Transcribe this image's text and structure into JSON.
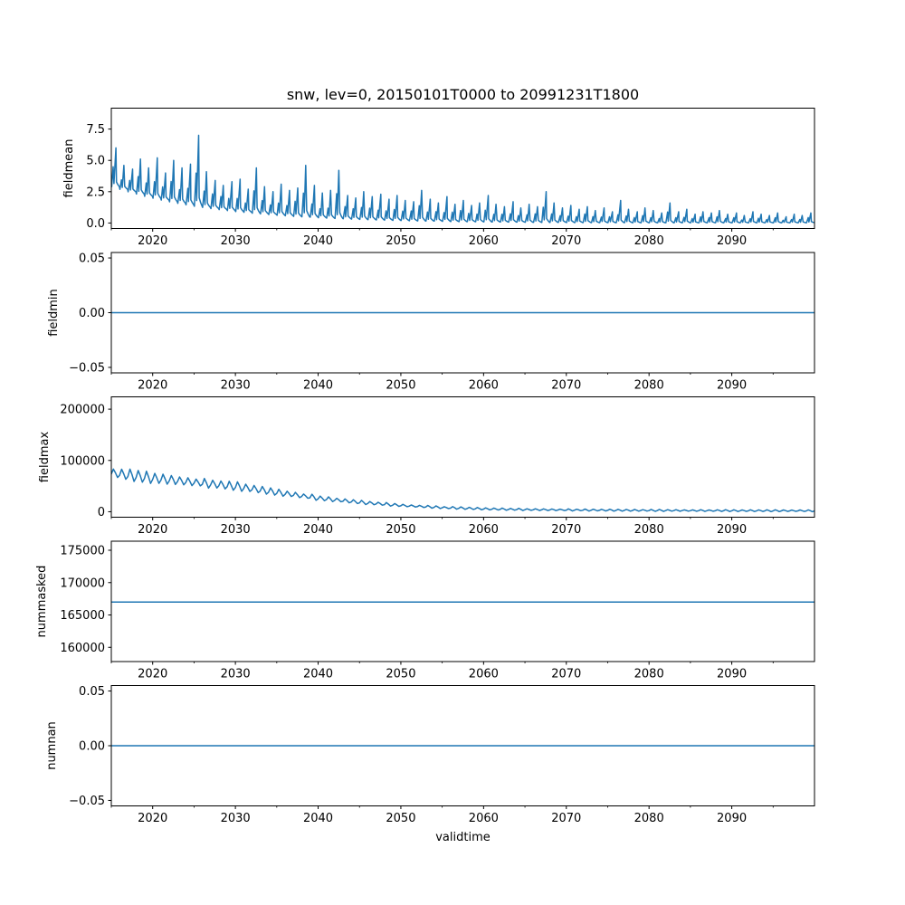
{
  "figure": {
    "title": "snw, lev=0, 20150101T0000 to 20991231T1800",
    "xlabel": "validtime",
    "line_color": "#1f77b4",
    "background_color": "#ffffff",
    "text_color": "#000000"
  },
  "x_axis": {
    "label": "validtime",
    "range": [
      2015,
      2100
    ],
    "major_ticks": [
      2020,
      2030,
      2040,
      2050,
      2060,
      2070,
      2080,
      2090
    ],
    "major_tick_labels": [
      "2020",
      "2030",
      "2040",
      "2050",
      "2060",
      "2070",
      "2080",
      "2090"
    ],
    "minor_ticks": [
      2015,
      2025,
      2035,
      2045,
      2055,
      2065,
      2075,
      2085,
      2095
    ]
  },
  "chart_data": [
    {
      "type": "line",
      "name": "fieldmean",
      "ylabel": "fieldmean",
      "ylim": [
        -0.44,
        9.17
      ],
      "yticks": [
        0.0,
        2.5,
        5.0,
        7.5
      ],
      "ytick_labels": [
        "0.0",
        "2.5",
        "5.0",
        "7.5"
      ],
      "xlim": [
        2015,
        2100
      ],
      "grid": false,
      "series": {
        "kind": "seasonal_spikes",
        "years_start": 2015,
        "trough": [
          2.9,
          2.69,
          2.49,
          2.31,
          2.13,
          1.98,
          1.83,
          1.69,
          1.57,
          1.45,
          1.34,
          1.24,
          1.15,
          1.07,
          0.99,
          0.91,
          0.85,
          0.78,
          0.73,
          0.67,
          0.62,
          0.58,
          0.53,
          0.49,
          0.46,
          0.42,
          0.39,
          0.36,
          0.34,
          0.31,
          0.29,
          0.27,
          0.25,
          0.23,
          0.21,
          0.2,
          0.18,
          0.17,
          0.16,
          0.15,
          0.13,
          0.12,
          0.11,
          0.11,
          0.1,
          0.09,
          0.08,
          0.08,
          0.07,
          0.07,
          0.06,
          0.06,
          0.05,
          0.05,
          0.05,
          0.04,
          0.04,
          0.04,
          0.03,
          0.03,
          0.03,
          0.03,
          0.03,
          0.02,
          0.02,
          0.02,
          0.02,
          0.02,
          0.02,
          0.02,
          0.02,
          0.02,
          0.02,
          0.02,
          0.02,
          0.02,
          0.02,
          0.02,
          0.02,
          0.02,
          0.02,
          0.02,
          0.02,
          0.02,
          0.02
        ],
        "peak": [
          6.0,
          4.6,
          4.3,
          5.1,
          4.4,
          5.2,
          4.0,
          5.0,
          4.4,
          4.7,
          7.0,
          4.1,
          3.4,
          3.0,
          3.3,
          3.5,
          2.7,
          4.4,
          2.9,
          2.5,
          3.1,
          2.6,
          2.8,
          4.6,
          3.0,
          2.4,
          2.6,
          4.2,
          2.2,
          2.0,
          2.5,
          2.1,
          2.3,
          1.9,
          2.2,
          1.8,
          1.7,
          2.6,
          1.9,
          1.6,
          2.1,
          1.5,
          1.8,
          1.4,
          1.6,
          2.2,
          1.5,
          1.3,
          1.7,
          1.2,
          1.5,
          1.3,
          2.5,
          1.6,
          1.2,
          1.4,
          1.1,
          1.3,
          1.0,
          1.2,
          0.9,
          1.8,
          1.1,
          0.9,
          1.2,
          1.0,
          0.8,
          1.6,
          0.9,
          1.1,
          0.7,
          0.9,
          0.8,
          1.0,
          0.7,
          0.8,
          0.6,
          0.9,
          0.7,
          0.6,
          0.8,
          0.5,
          0.7,
          0.6,
          0.8
        ]
      }
    },
    {
      "type": "line",
      "name": "fieldmin",
      "ylabel": "fieldmin",
      "ylim": [
        -0.055,
        0.055
      ],
      "yticks": [
        -0.05,
        0.0,
        0.05
      ],
      "ytick_labels": [
        "−0.05",
        "0.00",
        "0.05"
      ],
      "xlim": [
        2015,
        2100
      ],
      "grid": false,
      "series": {
        "kind": "constant",
        "value": 0.0
      }
    },
    {
      "type": "line",
      "name": "fieldmax",
      "ylabel": "fieldmax",
      "ylim": [
        -10700,
        224000
      ],
      "yticks": [
        0,
        100000,
        200000
      ],
      "ytick_labels": [
        "0",
        "100000",
        "200000"
      ],
      "xlim": [
        2015,
        2100
      ],
      "grid": false,
      "series": {
        "kind": "annual_wave",
        "years_start": 2015,
        "amp_base": 1200,
        "amp_frac": 0.13,
        "mean": [
          75000,
          73000,
          71000,
          69000,
          67000,
          65000,
          63400,
          61800,
          60200,
          58600,
          57000,
          55400,
          53800,
          52200,
          50600,
          49000,
          46600,
          44200,
          41800,
          39400,
          37000,
          34800,
          32600,
          30400,
          28200,
          26000,
          24400,
          22800,
          21200,
          19600,
          18000,
          16800,
          15600,
          14400,
          13200,
          12000,
          11200,
          10400,
          9600,
          8800,
          8000,
          7500,
          7000,
          6500,
          6000,
          5500,
          5240,
          4980,
          4720,
          4460,
          4200,
          4060,
          3920,
          3780,
          3640,
          3500,
          3400,
          3300,
          3200,
          3100,
          3000,
          2920,
          2840,
          2760,
          2680,
          2600,
          2540,
          2480,
          2420,
          2360,
          2300,
          2260,
          2220,
          2180,
          2140,
          2100,
          2080,
          2060,
          2040,
          2020,
          2000,
          1975,
          1950,
          1925,
          1900
        ]
      }
    },
    {
      "type": "line",
      "name": "nummasked",
      "ylabel": "nummasked",
      "ylim": [
        157800,
        176400
      ],
      "yticks": [
        160000,
        165000,
        170000,
        175000
      ],
      "ytick_labels": [
        "160000",
        "165000",
        "170000",
        "175000"
      ],
      "xlim": [
        2015,
        2100
      ],
      "grid": false,
      "series": {
        "kind": "constant",
        "value": 167000
      }
    },
    {
      "type": "line",
      "name": "numnan",
      "ylabel": "numnan",
      "ylim": [
        -0.055,
        0.055
      ],
      "yticks": [
        -0.05,
        0.0,
        0.05
      ],
      "ytick_labels": [
        "−0.05",
        "0.00",
        "0.05"
      ],
      "xlim": [
        2015,
        2100
      ],
      "grid": false,
      "series": {
        "kind": "constant",
        "value": 0.0
      }
    }
  ]
}
